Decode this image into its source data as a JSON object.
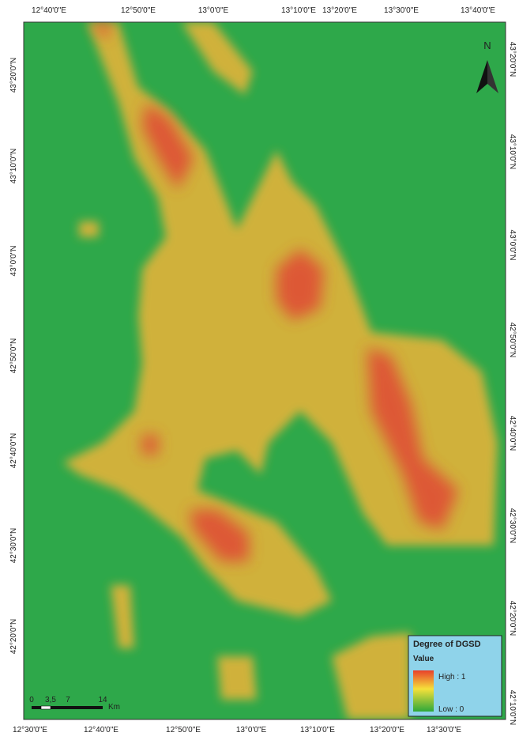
{
  "axes": {
    "top": [
      "12°40'0\"E",
      "12°50'0\"E",
      "13°0'0\"E",
      "13°10'0\"E",
      "13°20'0\"E",
      "13°30'0\"E",
      "13°40'0\"E"
    ],
    "bottom": [
      "12°30'0\"E",
      "12°40'0\"E",
      "12°50'0\"E",
      "13°0'0\"E",
      "13°10'0\"E",
      "13°20'0\"E",
      "13°30'0\"E"
    ],
    "left": [
      "43°20'0\"N",
      "43°10'0\"N",
      "43°0'0\"N",
      "42°50'0\"N",
      "42°40'0\"N",
      "42°30'0\"N",
      "42°20'0\"N"
    ],
    "right": [
      "43°20'0\"N",
      "43°10'0\"N",
      "43°0'0\"N",
      "42°50'0\"N",
      "42°40'0\"N",
      "42°30'0\"N",
      "42°20'0\"N",
      "42°10'0\"N"
    ]
  },
  "north": "N",
  "legend": {
    "title": "Degree of DGSD",
    "subtitle": "Value",
    "high": "High : 1",
    "low": "Low : 0"
  },
  "scale_bar": {
    "ticks": [
      "0",
      "3,5",
      "7",
      "14"
    ],
    "unit": "Km"
  }
}
